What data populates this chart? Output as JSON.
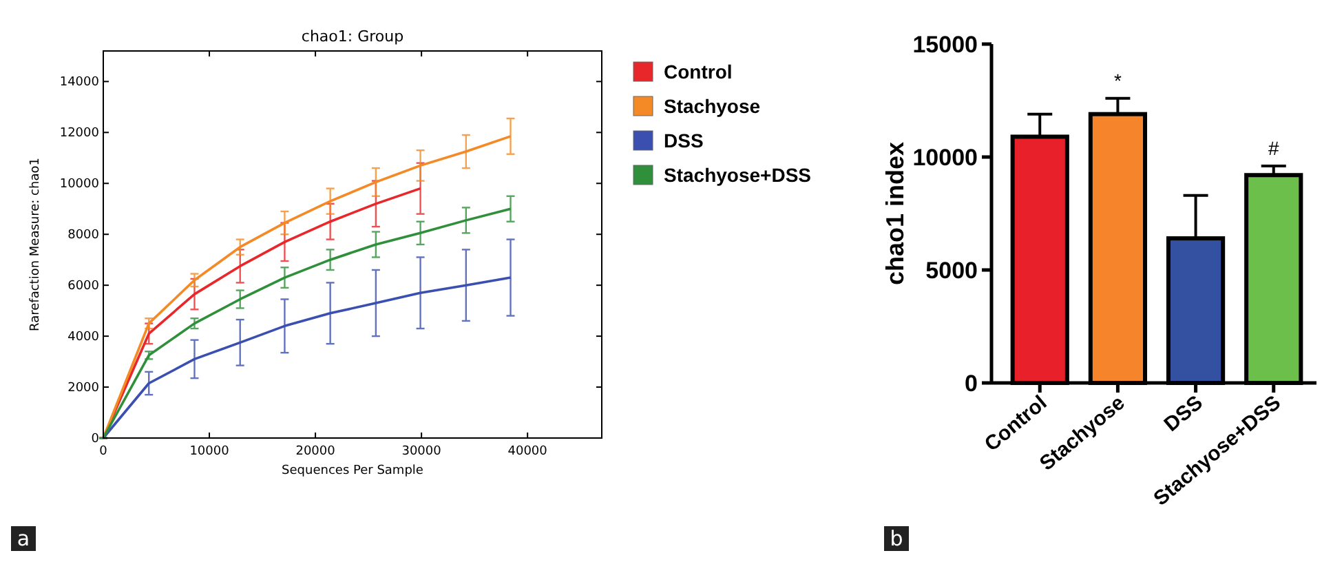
{
  "chart_data": [
    {
      "type": "line",
      "title": "chao1: Group",
      "xlabel": "Sequences Per Sample",
      "ylabel": "Rarefaction Measure: chao1",
      "xlim": [
        0,
        47000
      ],
      "ylim": [
        0,
        15200
      ],
      "xticks": [
        0,
        10000,
        20000,
        30000,
        40000
      ],
      "yticks": [
        0,
        2000,
        4000,
        6000,
        8000,
        10000,
        12000,
        14000
      ],
      "legend": "right",
      "grid": false,
      "marker": "none",
      "line_style": "solid",
      "annotations": [
        "a"
      ],
      "series": [
        {
          "name": "Control",
          "color": "#e8272a",
          "x": [
            0,
            4300,
            8600,
            12900,
            17100,
            21400,
            25700,
            29900
          ],
          "values": [
            0,
            4100,
            5650,
            6750,
            7700,
            8500,
            9200,
            9800
          ],
          "errors": [
            0,
            400,
            600,
            650,
            750,
            700,
            900,
            1000
          ]
        },
        {
          "name": "Stachyose",
          "color": "#f38a26",
          "x": [
            0,
            4300,
            8600,
            12900,
            17100,
            21400,
            25700,
            29900,
            34200,
            38400
          ],
          "values": [
            0,
            4500,
            6200,
            7500,
            8450,
            9300,
            10050,
            10700,
            11250,
            11850
          ],
          "errors": [
            0,
            200,
            250,
            300,
            450,
            500,
            550,
            600,
            650,
            700
          ]
        },
        {
          "name": "DSS",
          "color": "#3a4fb0",
          "x": [
            0,
            4300,
            8600,
            12900,
            17100,
            21400,
            25700,
            29900,
            34200,
            38400
          ],
          "values": [
            0,
            2150,
            3100,
            3750,
            4400,
            4900,
            5300,
            5700,
            6000,
            6300
          ],
          "errors": [
            0,
            450,
            750,
            900,
            1050,
            1200,
            1300,
            1400,
            1400,
            1500
          ]
        },
        {
          "name": "Stachyose+DSS",
          "color": "#2f8f3a",
          "x": [
            0,
            4300,
            8600,
            12900,
            17100,
            21400,
            25700,
            29900,
            34200,
            38400
          ],
          "values": [
            0,
            3250,
            4500,
            5450,
            6300,
            7000,
            7600,
            8050,
            8550,
            9000
          ],
          "errors": [
            0,
            150,
            200,
            350,
            400,
            400,
            500,
            450,
            500,
            500
          ]
        }
      ]
    },
    {
      "type": "bar",
      "ylabel": "chao1 index",
      "categories": [
        "Control",
        "Stachyose",
        "DSS",
        "Stachyose+DSS"
      ],
      "values": [
        10900,
        11900,
        6400,
        9200
      ],
      "errors": [
        1000,
        700,
        1900,
        400
      ],
      "colors": [
        "#e8202a",
        "#f5842a",
        "#3450a0",
        "#6cbf4a"
      ],
      "ylim": [
        0,
        15000
      ],
      "yticks": [
        0,
        5000,
        10000,
        15000
      ],
      "grid": false,
      "annotations": [
        "b",
        {
          "text": "*",
          "x": "Stachyose",
          "y": 12600
        },
        {
          "text": "#",
          "x": "Stachyose+DSS",
          "y": 9600
        }
      ]
    }
  ]
}
